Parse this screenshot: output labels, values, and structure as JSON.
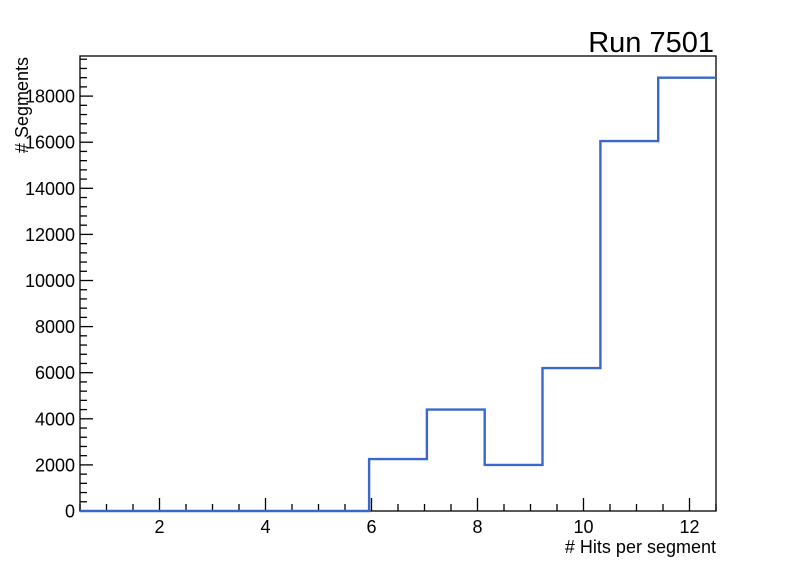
{
  "title": "Run 7501",
  "axes": {
    "x_label": "# Hits per segment",
    "y_label": "# Segments"
  },
  "colors": {
    "histogram_line": "#3a68ca",
    "axis_line": "#000000",
    "background": "#ffffff"
  },
  "chart_data": {
    "type": "bar",
    "style": "step-histogram",
    "title": "Run 7501",
    "xlabel": "# Hits per segment",
    "ylabel": "# Segments",
    "xlim": [
      0.5,
      12.5
    ],
    "ylim": [
      0,
      19740
    ],
    "grid": false,
    "legend": null,
    "bin_count": 11,
    "bin_edges": [
      0.5,
      1.591,
      2.682,
      3.773,
      4.864,
      5.955,
      7.045,
      8.136,
      9.227,
      10.318,
      11.409,
      12.5
    ],
    "values": [
      0,
      0,
      0,
      0,
      0,
      2250,
      4400,
      2000,
      6200,
      16050,
      18800
    ],
    "x_major_ticks": [
      2,
      4,
      6,
      8,
      10,
      12
    ],
    "x_major_tick_labels": [
      "2",
      "4",
      "6",
      "8",
      "10",
      "12"
    ],
    "x_minor_step": 0.5,
    "y_major_ticks": [
      0,
      2000,
      4000,
      6000,
      8000,
      10000,
      12000,
      14000,
      16000,
      18000
    ],
    "y_major_tick_labels": [
      "0",
      "2000",
      "4000",
      "6000",
      "8000",
      "10000",
      "12000",
      "14000",
      "16000",
      "18000"
    ],
    "y_minor_step": 400
  }
}
